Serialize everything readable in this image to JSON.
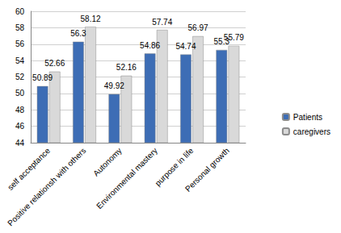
{
  "chart_data": {
    "type": "bar",
    "categories": [
      "self acceptance",
      "Positive relationsh with others",
      "Autonomy",
      "Environmental mastery",
      "purpose in life",
      "Personal growth"
    ],
    "series": [
      {
        "name": "Patients",
        "color": "#3d6db5",
        "values": [
          50.89,
          56.3,
          49.92,
          54.86,
          54.74,
          55.3
        ]
      },
      {
        "name": "caregivers",
        "color": "#d9d9d9",
        "values": [
          52.66,
          58.12,
          52.16,
          57.74,
          56.97,
          55.79
        ]
      }
    ],
    "ylim": [
      44,
      60
    ],
    "yticks": [
      44,
      46,
      48,
      50,
      52,
      54,
      56,
      58,
      60
    ],
    "grid": true,
    "legend": "right",
    "data_labels": true
  }
}
